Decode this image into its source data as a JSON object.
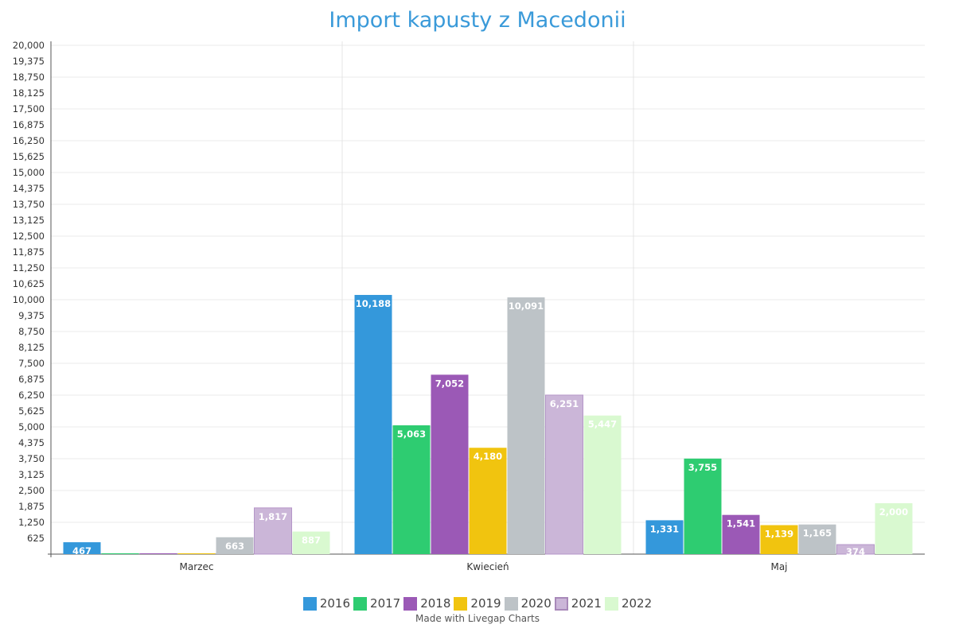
{
  "chart_data": {
    "type": "bar",
    "title": "Import kapusty z Macedonii",
    "categories": [
      "Marzec",
      "Kwiecień",
      "Maj"
    ],
    "series": [
      {
        "name": "2016",
        "color": "#3498db",
        "values": [
          467,
          10188,
          1331
        ]
      },
      {
        "name": "2017",
        "color": "#2ecc71",
        "values": [
          0,
          5063,
          3755
        ]
      },
      {
        "name": "2018",
        "color": "#9b59b6",
        "values": [
          0,
          7052,
          1541
        ]
      },
      {
        "name": "2019",
        "color": "#f1c40f",
        "values": [
          0,
          4180,
          1139
        ]
      },
      {
        "name": "2020",
        "color": "#bdc3c7",
        "values": [
          663,
          10091,
          1165
        ]
      },
      {
        "name": "2021",
        "color": "#cbb6d8",
        "values": [
          1817,
          6251,
          374
        ]
      },
      {
        "name": "2022",
        "color": "#d9f9d0",
        "values": [
          887,
          5447,
          2000
        ]
      }
    ],
    "ylim": [
      0,
      20000
    ],
    "ytick_step": 625,
    "grid": true,
    "legend": "bottom",
    "xlabel": "",
    "ylabel": ""
  },
  "credit": "Made with Livegap Charts"
}
